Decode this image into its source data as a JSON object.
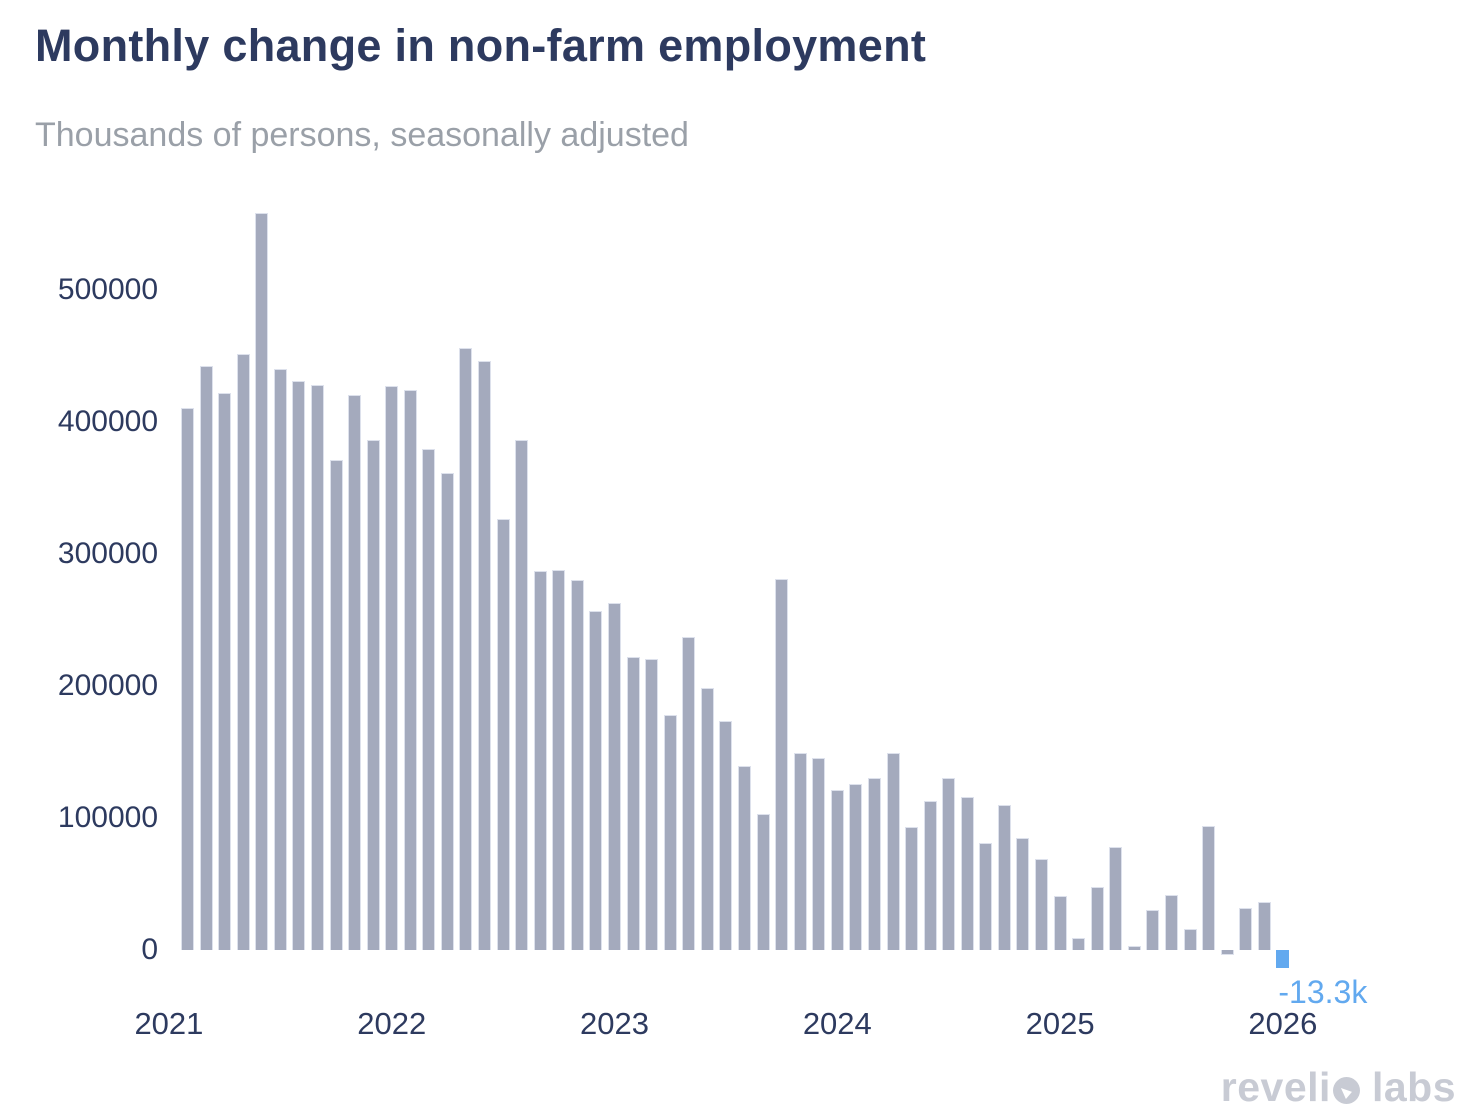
{
  "chart_data": {
    "type": "bar",
    "title": "Monthly change in non-farm employment",
    "subtitle": "Thousands of persons, seasonally adjusted",
    "x": [
      "Feb 2021",
      "Mar 2021",
      "Apr 2021",
      "May 2021",
      "Jun 2021",
      "Jul 2021",
      "Aug 2021",
      "Sep 2021",
      "Oct 2021",
      "Nov 2021",
      "Dec 2021",
      "Jan 2022",
      "Feb 2022",
      "Mar 2022",
      "Apr 2022",
      "May 2022",
      "Jun 2022",
      "Jul 2022",
      "Aug 2022",
      "Sep 2022",
      "Oct 2022",
      "Nov 2022",
      "Dec 2022",
      "Jan 2023",
      "Feb 2023",
      "Mar 2023",
      "Apr 2023",
      "May 2023",
      "Jun 2023",
      "Jul 2023",
      "Aug 2023",
      "Sep 2023",
      "Oct 2023",
      "Nov 2023",
      "Dec 2023",
      "Jan 2024",
      "Feb 2024",
      "Mar 2024",
      "Apr 2024",
      "May 2024",
      "Jun 2024",
      "Jul 2024",
      "Aug 2024",
      "Sep 2024",
      "Oct 2024",
      "Nov 2024",
      "Dec 2024",
      "Jan 2025",
      "Feb 2025",
      "Mar 2025",
      "Apr 2025",
      "May 2025",
      "Jun 2025",
      "Jul 2025",
      "Aug 2025",
      "Sep 2025",
      "Oct 2025",
      "Nov 2025",
      "Dec 2025",
      "Jan 2026"
    ],
    "values": [
      410000,
      442000,
      422000,
      451000,
      558000,
      440000,
      431000,
      428000,
      371000,
      420000,
      386000,
      427000,
      424000,
      379000,
      361000,
      456000,
      446000,
      326000,
      386000,
      287000,
      288000,
      280000,
      257000,
      263000,
      222000,
      220000,
      178000,
      237000,
      198000,
      173000,
      139000,
      103000,
      281000,
      149000,
      145000,
      121000,
      126000,
      130000,
      149000,
      93000,
      113000,
      130000,
      116000,
      81000,
      110000,
      85000,
      69000,
      41000,
      9000,
      48000,
      78000,
      3000,
      30000,
      42000,
      16000,
      94000,
      -4000,
      32000,
      36000,
      -13300
    ],
    "yticks": [
      0,
      100000,
      200000,
      300000,
      400000,
      500000
    ],
    "xticks": [
      {
        "label": "2021",
        "month_index": -1
      },
      {
        "label": "2022",
        "month_index": 11
      },
      {
        "label": "2023",
        "month_index": 23
      },
      {
        "label": "2024",
        "month_index": 35
      },
      {
        "label": "2025",
        "month_index": 47
      },
      {
        "label": "2026",
        "month_index": 59
      }
    ],
    "ylim": [
      -20000,
      560000
    ],
    "grid": false,
    "legend": false,
    "bar_color": "#a4aabd",
    "highlight": {
      "index": 59,
      "label": "-13.3k",
      "color": "#62a9ef"
    }
  },
  "colors": {
    "title": "#2d3a5f",
    "subtitle": "#9aa0a8",
    "axis_labels": "#2d3a5f",
    "bar": "#a4aabd",
    "bar_edge": "#dde1ec",
    "highlight_blue": "#62a9ef",
    "logo_gray": "#c8cbd4",
    "background": "#ffffff"
  },
  "logo": {
    "part1": "reveli",
    "part2": "labs",
    "o_icon": "revelio-droplet-o"
  }
}
